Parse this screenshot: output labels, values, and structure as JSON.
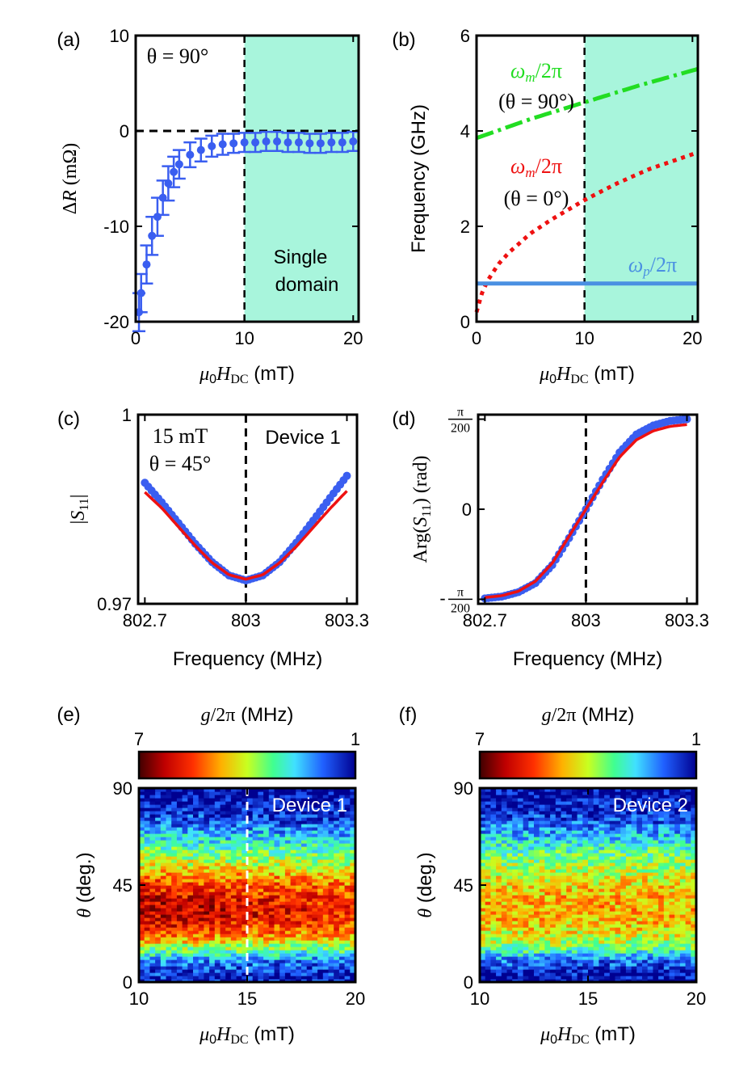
{
  "chart_data": [
    {
      "id": "a",
      "type": "scatter",
      "panel_label": "(a)",
      "annotation": "θ = 90°",
      "shaded_label": [
        "Single",
        "domain"
      ],
      "shaded_region": [
        10,
        20.5
      ],
      "ylabel": "ΔR (mΩ)",
      "xlabel": "μ0HDC (mT)",
      "xlim": [
        0,
        20.5
      ],
      "ylim": [
        -20,
        10
      ],
      "xticks": [
        0,
        10,
        20
      ],
      "yticks": [
        10,
        0,
        -10,
        -20
      ],
      "ytick_labels": [
        "10",
        "0",
        "-10",
        "-20"
      ],
      "reference_line_y": 0,
      "points": [
        {
          "x": 0.3,
          "y": -19,
          "err": 2
        },
        {
          "x": 0.5,
          "y": -17,
          "err": 2
        },
        {
          "x": 1.0,
          "y": -14,
          "err": 2
        },
        {
          "x": 1.5,
          "y": -11,
          "err": 2
        },
        {
          "x": 2.0,
          "y": -9,
          "err": 2
        },
        {
          "x": 2.5,
          "y": -7,
          "err": 1.8
        },
        {
          "x": 3.0,
          "y": -5.5,
          "err": 1.8
        },
        {
          "x": 3.5,
          "y": -4.3,
          "err": 1.6
        },
        {
          "x": 4.0,
          "y": -3.5,
          "err": 1.5
        },
        {
          "x": 5.0,
          "y": -2.5,
          "err": 1.3
        },
        {
          "x": 6.0,
          "y": -2.0,
          "err": 1.2
        },
        {
          "x": 7.0,
          "y": -1.6,
          "err": 1.1
        },
        {
          "x": 8.0,
          "y": -1.4,
          "err": 1.1
        },
        {
          "x": 9.0,
          "y": -1.3,
          "err": 1.0
        },
        {
          "x": 10.0,
          "y": -1.2,
          "err": 1.0
        },
        {
          "x": 11.0,
          "y": -1.2,
          "err": 1.0
        },
        {
          "x": 12.0,
          "y": -1.1,
          "err": 1.0
        },
        {
          "x": 13.0,
          "y": -1.1,
          "err": 1.0
        },
        {
          "x": 14.0,
          "y": -1.2,
          "err": 1.0
        },
        {
          "x": 15.0,
          "y": -1.2,
          "err": 1.0
        },
        {
          "x": 16.0,
          "y": -1.3,
          "err": 1.0
        },
        {
          "x": 17.0,
          "y": -1.3,
          "err": 1.0
        },
        {
          "x": 18.0,
          "y": -1.2,
          "err": 1.0
        },
        {
          "x": 19.0,
          "y": -1.2,
          "err": 1.0
        },
        {
          "x": 20.0,
          "y": -1.1,
          "err": 1.0
        }
      ]
    },
    {
      "id": "b",
      "type": "line",
      "panel_label": "(b)",
      "ylabel": "Frequency (GHz)",
      "xlabel": "μ0HDC (mT)",
      "xlim": [
        0,
        20.5
      ],
      "ylim": [
        0,
        6
      ],
      "xticks": [
        0,
        10,
        20
      ],
      "yticks": [
        0,
        2,
        4,
        6
      ],
      "shaded_region": [
        10,
        20.5
      ],
      "series": [
        {
          "name": "ωm/2π (θ = 90°)",
          "label_lines": [
            "ωm/2π",
            "(θ = 90°)"
          ],
          "color": "#22dd22",
          "style": "dashdot",
          "x": [
            0,
            5,
            10,
            15,
            20.5
          ],
          "values": [
            3.85,
            4.25,
            4.6,
            4.95,
            5.3
          ]
        },
        {
          "name": "ωm/2π (θ = 0°)",
          "label_lines": [
            "ωm/2π",
            "(θ = 0°)"
          ],
          "color": "#ee1111",
          "style": "dotted",
          "x": [
            0,
            0.5,
            1,
            2,
            3,
            5,
            7,
            10,
            13,
            16,
            20.5
          ],
          "values": [
            0.2,
            0.6,
            0.85,
            1.2,
            1.45,
            1.85,
            2.15,
            2.55,
            2.9,
            3.2,
            3.55
          ]
        },
        {
          "name": "ωp/2π",
          "label_lines": [
            "ωp/2π"
          ],
          "color": "#4a90e2",
          "style": "solid",
          "x": [
            0,
            20.5
          ],
          "values": [
            0.8,
            0.8
          ]
        }
      ]
    },
    {
      "id": "c",
      "type": "scatter",
      "panel_label": "(c)",
      "annotation": [
        "15 mT",
        "θ = 45°"
      ],
      "device_label": "Device 1",
      "ylabel": "|S11|",
      "xlabel": "Frequency (MHz)",
      "xlim": [
        802.68,
        803.33
      ],
      "ylim": [
        0.97,
        1.0
      ],
      "xticks": [
        802.7,
        803,
        803.3
      ],
      "xtick_labels": [
        "802.7",
        "803",
        "803.3"
      ],
      "yticks": [
        0.97,
        1.0
      ],
      "ytick_labels": [
        "0.97",
        "1"
      ],
      "reference_line_x": 803,
      "data_series": {
        "name": "data",
        "color": "#3a5ef0",
        "x": [
          802.7,
          802.75,
          802.8,
          802.85,
          802.9,
          802.95,
          803,
          803.05,
          803.1,
          803.15,
          803.2,
          803.25,
          803.3
        ],
        "values": [
          0.9892,
          0.9861,
          0.9828,
          0.9795,
          0.9766,
          0.9745,
          0.9737,
          0.9745,
          0.9766,
          0.9797,
          0.9832,
          0.9868,
          0.9903
        ]
      },
      "fit_series": {
        "name": "fit",
        "color": "#ee1111",
        "x": [
          802.7,
          802.75,
          802.8,
          802.85,
          802.9,
          802.95,
          803,
          803.05,
          803.1,
          803.15,
          803.2,
          803.25,
          803.3
        ],
        "values": [
          0.9877,
          0.9852,
          0.9822,
          0.9792,
          0.9765,
          0.9746,
          0.9739,
          0.9746,
          0.9765,
          0.9791,
          0.9821,
          0.9851,
          0.9879
        ]
      }
    },
    {
      "id": "d",
      "type": "scatter",
      "panel_label": "(d)",
      "ylabel": "Arg(S11) (rad)",
      "xlabel": "Frequency (MHz)",
      "xlim": [
        802.68,
        803.33
      ],
      "ylim": [
        -1.05,
        1.05
      ],
      "xticks": [
        802.7,
        803,
        803.3
      ],
      "xtick_labels": [
        "802.7",
        "803",
        "803.3"
      ],
      "ytick_labels": [
        "π/200",
        "0",
        "-π/200"
      ],
      "reference_line_x": 803,
      "data_series": {
        "name": "data",
        "color": "#3a5ef0",
        "x": [
          802.7,
          802.75,
          802.8,
          802.85,
          802.9,
          802.95,
          803,
          803.05,
          803.1,
          803.15,
          803.2,
          803.25,
          803.3
        ],
        "values": [
          -0.99,
          -0.97,
          -0.92,
          -0.82,
          -0.62,
          -0.32,
          0.0,
          0.33,
          0.63,
          0.83,
          0.93,
          0.98,
          1.0
        ]
      },
      "fit_series": {
        "name": "fit",
        "color": "#ee1111",
        "x": [
          802.7,
          802.75,
          802.8,
          802.85,
          802.9,
          802.95,
          803,
          803.05,
          803.1,
          803.15,
          803.2,
          803.25,
          803.3
        ],
        "values": [
          -0.98,
          -0.96,
          -0.91,
          -0.8,
          -0.6,
          -0.3,
          0.0,
          0.3,
          0.58,
          0.77,
          0.87,
          0.92,
          0.94
        ]
      }
    },
    {
      "id": "e",
      "type": "heatmap",
      "panel_label": "(e)",
      "colorbar_title": "g/2π (MHz)",
      "colorbar_min_label": "7",
      "colorbar_max_label": "1",
      "device_label": "Device 1",
      "ylabel": "θ (deg.)",
      "xlabel": "μ0HDC (mT)",
      "xlim": [
        10,
        20
      ],
      "ylim": [
        0,
        90
      ],
      "xticks": [
        10,
        15,
        20
      ],
      "yticks": [
        0,
        45,
        90
      ],
      "reference_line_x": 15,
      "theta_profile": [
        {
          "theta": 0,
          "g": 1.3
        },
        {
          "theta": 5,
          "g": 1.6
        },
        {
          "theta": 10,
          "g": 2.2
        },
        {
          "theta": 15,
          "g": 3.5
        },
        {
          "theta": 20,
          "g": 4.8
        },
        {
          "theta": 25,
          "g": 5.8
        },
        {
          "theta": 30,
          "g": 6.2
        },
        {
          "theta": 35,
          "g": 6.3
        },
        {
          "theta": 40,
          "g": 6.0
        },
        {
          "theta": 45,
          "g": 5.6
        },
        {
          "theta": 50,
          "g": 5.0
        },
        {
          "theta": 55,
          "g": 4.2
        },
        {
          "theta": 60,
          "g": 3.6
        },
        {
          "theta": 65,
          "g": 3.0
        },
        {
          "theta": 70,
          "g": 2.4
        },
        {
          "theta": 75,
          "g": 1.8
        },
        {
          "theta": 80,
          "g": 1.4
        },
        {
          "theta": 85,
          "g": 1.2
        },
        {
          "theta": 90,
          "g": 1.1
        }
      ]
    },
    {
      "id": "f",
      "type": "heatmap",
      "panel_label": "(f)",
      "colorbar_title": "g/2π (MHz)",
      "colorbar_min_label": "7",
      "colorbar_max_label": "1",
      "device_label": "Device 2",
      "ylabel": "θ (deg.)",
      "xlabel": "μ0HDC (mT)",
      "xlim": [
        10,
        20
      ],
      "ylim": [
        0,
        90
      ],
      "xticks": [
        10,
        15,
        20
      ],
      "yticks": [
        0,
        45,
        90
      ],
      "theta_profile": [
        {
          "theta": 0,
          "g": 1.1
        },
        {
          "theta": 5,
          "g": 1.3
        },
        {
          "theta": 10,
          "g": 2.0
        },
        {
          "theta": 15,
          "g": 3.2
        },
        {
          "theta": 20,
          "g": 4.0
        },
        {
          "theta": 25,
          "g": 4.4
        },
        {
          "theta": 30,
          "g": 4.6
        },
        {
          "theta": 35,
          "g": 4.7
        },
        {
          "theta": 40,
          "g": 4.6
        },
        {
          "theta": 45,
          "g": 4.4
        },
        {
          "theta": 50,
          "g": 4.1
        },
        {
          "theta": 55,
          "g": 3.7
        },
        {
          "theta": 60,
          "g": 3.3
        },
        {
          "theta": 65,
          "g": 2.8
        },
        {
          "theta": 70,
          "g": 2.3
        },
        {
          "theta": 75,
          "g": 1.8
        },
        {
          "theta": 80,
          "g": 1.4
        },
        {
          "theta": 85,
          "g": 1.2
        },
        {
          "theta": 90,
          "g": 1.1
        }
      ]
    }
  ]
}
